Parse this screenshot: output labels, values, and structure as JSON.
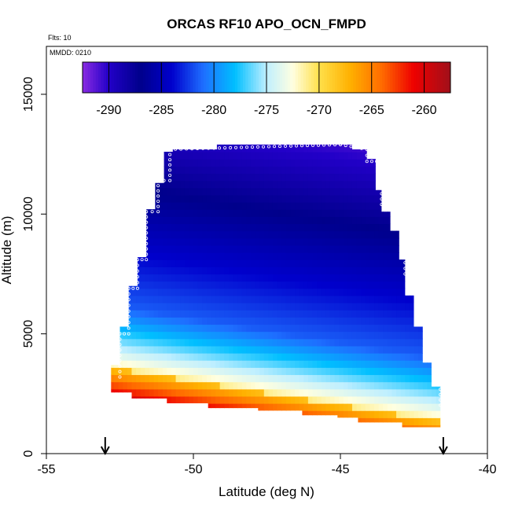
{
  "chart_data": {
    "type": "heatmap",
    "title": "ORCAS RF10 APO_OCN_FMPD",
    "annotations": {
      "flights": "Flts: 10",
      "date": "MMDD: 0210"
    },
    "xlabel": "Latitude (deg N)",
    "ylabel": "Altitude (m)",
    "xlim": [
      -55,
      -40
    ],
    "ylim": [
      0,
      17000
    ],
    "x_ticks": [
      -55,
      -50,
      -45,
      -40
    ],
    "x_tick_labels": [
      "-55",
      "-50",
      "-45",
      "-40"
    ],
    "y_ticks": [
      0,
      5000,
      10000,
      15000
    ],
    "y_tick_labels": [
      "0",
      "5000",
      "10000",
      "15000"
    ],
    "colorbar": {
      "min": -292.5,
      "max": -257.5,
      "ticks": [
        -290,
        -285,
        -280,
        -275,
        -270,
        -265,
        -260
      ],
      "tick_labels": [
        "-290",
        "-285",
        "-280",
        "-275",
        "-270",
        "-265",
        "-260"
      ],
      "stops": [
        {
          "value": -292.5,
          "color": "#8A2BE2"
        },
        {
          "value": -290,
          "color": "#2200C8"
        },
        {
          "value": -287,
          "color": "#00008B"
        },
        {
          "value": -284,
          "color": "#0000CD"
        },
        {
          "value": -281,
          "color": "#1E6FFF"
        },
        {
          "value": -278,
          "color": "#00BFFF"
        },
        {
          "value": -275,
          "color": "#BFEFFF"
        },
        {
          "value": -272.5,
          "color": "#FFFFE0"
        },
        {
          "value": -270,
          "color": "#FFE04A"
        },
        {
          "value": -267,
          "color": "#FFB000"
        },
        {
          "value": -264,
          "color": "#FF6A00"
        },
        {
          "value": -261,
          "color": "#EE0000"
        },
        {
          "value": -257.5,
          "color": "#A0101A"
        }
      ]
    },
    "profile_samples": [
      {
        "lat": -52.5,
        "alt_min": 3200,
        "alt_max": 5000
      },
      {
        "lat": -52.2,
        "alt_min": 5000,
        "alt_max": 6900
      },
      {
        "lat": -51.9,
        "alt_min": 6900,
        "alt_max": 8100
      },
      {
        "lat": -51.6,
        "alt_min": 8100,
        "alt_max": 10100
      },
      {
        "lat": -51.2,
        "alt_min": 10100,
        "alt_max": 11400
      },
      {
        "lat": -50.8,
        "alt_min": 11400,
        "alt_max": 12700
      },
      {
        "lat": -45.0,
        "alt_min": 12900,
        "alt_max": 12900
      },
      {
        "lat": -44.1,
        "alt_min": 12700,
        "alt_max": 12200
      },
      {
        "lat": -43.6,
        "alt_min": 12200,
        "alt_max": 10400
      },
      {
        "lat": -42.8,
        "alt_min": 10300,
        "alt_max": 7500
      },
      {
        "lat": -42.1,
        "alt_min": 7500,
        "alt_max": 4000
      },
      {
        "lat": -41.6,
        "alt_min": 4000,
        "alt_max": 1800
      }
    ],
    "markers": [
      {
        "lat": -53.0,
        "type": "arrow"
      },
      {
        "lat": -41.5,
        "type": "arrow"
      }
    ]
  }
}
